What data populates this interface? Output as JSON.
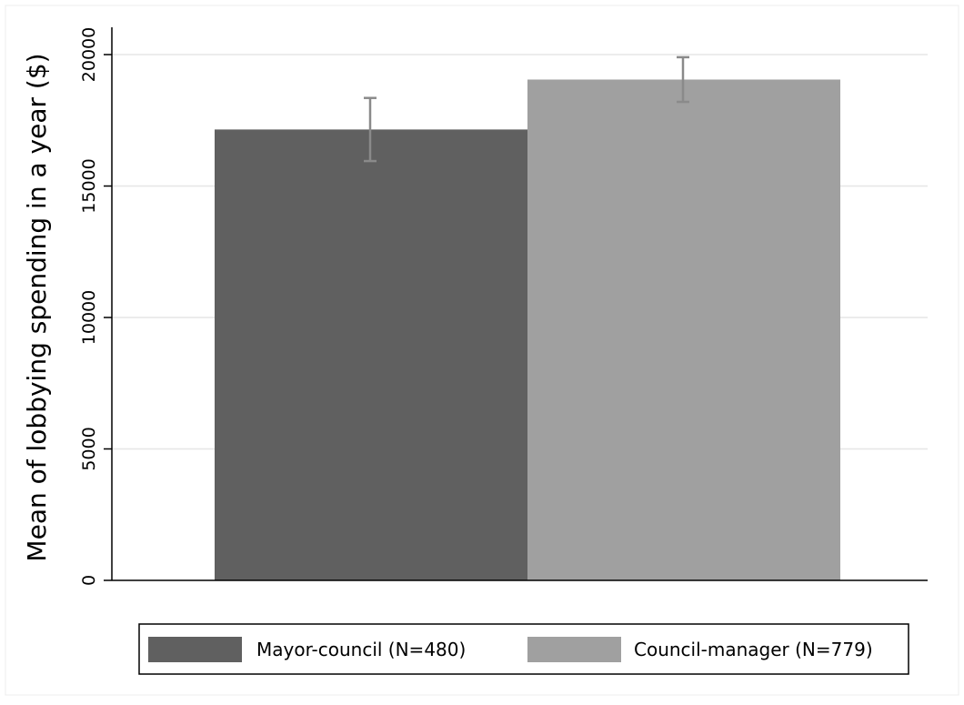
{
  "chart_data": {
    "type": "bar",
    "ylabel": "Mean of lobbying spending in a year ($)",
    "xlabel": "",
    "ylim": [
      0,
      21000
    ],
    "yticks": [
      0,
      5000,
      10000,
      15000,
      20000
    ],
    "ytick_labels": [
      "0",
      "5000",
      "10000",
      "15000",
      "20000"
    ],
    "grid": true,
    "legend_position": "bottom",
    "series": [
      {
        "name": "Mayor-council (N=480)",
        "value": 17150,
        "ci_low": 15950,
        "ci_high": 18350,
        "color": "#606060"
      },
      {
        "name": "Council-manager (N=779)",
        "value": 19050,
        "ci_low": 18200,
        "ci_high": 19900,
        "color": "#a0a0a0"
      }
    ],
    "colors": {
      "error_bar": "#8a8a8a",
      "grid": "#e6e6e6",
      "axis": "#000000"
    }
  }
}
